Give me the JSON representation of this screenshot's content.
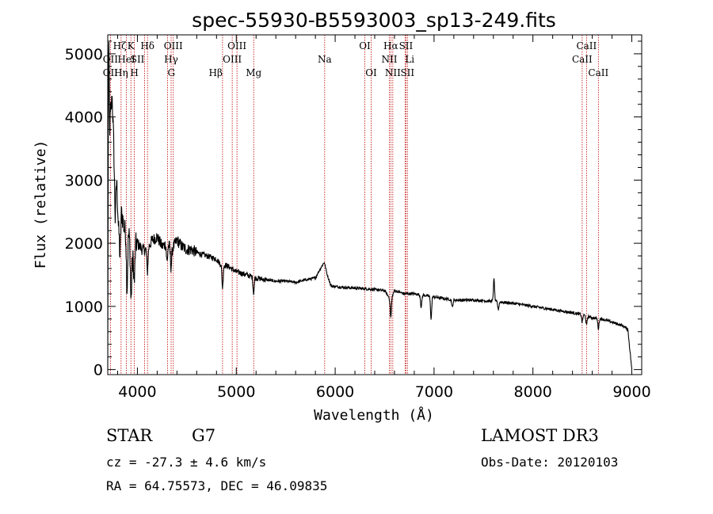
{
  "chart_data": {
    "type": "line",
    "title": "spec-55930-B5593003_sp13-249.fits",
    "xlabel": "Wavelength (Å)",
    "ylabel": "Flux (relative)",
    "xlim": [
      3700,
      9100
    ],
    "ylim": [
      -80,
      5300
    ],
    "xticks": [
      4000,
      5000,
      6000,
      7000,
      8000,
      9000
    ],
    "yticks": [
      0,
      1000,
      2000,
      3000,
      4000,
      5000
    ],
    "series": [
      {
        "name": "flux",
        "anchors": [
          [
            3700,
            0
          ],
          [
            3705,
            3400
          ],
          [
            3710,
            5300
          ],
          [
            3720,
            3800
          ],
          [
            3730,
            4100
          ],
          [
            3745,
            4300
          ],
          [
            3760,
            3600
          ],
          [
            3775,
            2400
          ],
          [
            3790,
            3000
          ],
          [
            3810,
            2200
          ],
          [
            3830,
            2600
          ],
          [
            3850,
            2400
          ],
          [
            3870,
            2200
          ],
          [
            3890,
            2200
          ],
          [
            3920,
            2100
          ],
          [
            3950,
            1700
          ],
          [
            3970,
            2000
          ],
          [
            4000,
            2000
          ],
          [
            4050,
            1900
          ],
          [
            4100,
            1900
          ],
          [
            4150,
            2050
          ],
          [
            4200,
            2100
          ],
          [
            4250,
            1950
          ],
          [
            4300,
            2000
          ],
          [
            4350,
            1900
          ],
          [
            4400,
            2050
          ],
          [
            4450,
            1950
          ],
          [
            4500,
            1900
          ],
          [
            4550,
            1900
          ],
          [
            4600,
            1850
          ],
          [
            4700,
            1800
          ],
          [
            4800,
            1750
          ],
          [
            4850,
            1650
          ],
          [
            4900,
            1650
          ],
          [
            5000,
            1550
          ],
          [
            5100,
            1500
          ],
          [
            5200,
            1450
          ],
          [
            5300,
            1420
          ],
          [
            5400,
            1400
          ],
          [
            5500,
            1400
          ],
          [
            5600,
            1380
          ],
          [
            5700,
            1420
          ],
          [
            5800,
            1450
          ],
          [
            5850,
            1600
          ],
          [
            5890,
            1700
          ],
          [
            5920,
            1500
          ],
          [
            5960,
            1320
          ],
          [
            6100,
            1300
          ],
          [
            6300,
            1280
          ],
          [
            6500,
            1250
          ],
          [
            6562,
            1100
          ],
          [
            6600,
            1250
          ],
          [
            6700,
            1200
          ],
          [
            6800,
            1200
          ],
          [
            7000,
            1150
          ],
          [
            7200,
            1100
          ],
          [
            7400,
            1100
          ],
          [
            7600,
            1080
          ],
          [
            7800,
            1050
          ],
          [
            8000,
            1000
          ],
          [
            8200,
            950
          ],
          [
            8400,
            900
          ],
          [
            8500,
            870
          ],
          [
            8600,
            820
          ],
          [
            8700,
            800
          ],
          [
            8800,
            750
          ],
          [
            8900,
            700
          ],
          [
            8960,
            640
          ],
          [
            9000,
            0
          ]
        ],
        "features": [
          [
            3825,
            -700
          ],
          [
            3895,
            -900
          ],
          [
            3935,
            -800
          ],
          [
            3969,
            -600
          ],
          [
            4101,
            -350
          ],
          [
            4300,
            -300
          ],
          [
            4340,
            -300
          ],
          [
            4861,
            -350
          ],
          [
            5175,
            -250
          ],
          [
            5890,
            0
          ],
          [
            6563,
            -280
          ],
          [
            6870,
            -200
          ],
          [
            6970,
            -350
          ],
          [
            7185,
            -120
          ],
          [
            7606,
            350
          ],
          [
            7650,
            -120
          ],
          [
            8498,
            -120
          ],
          [
            8542,
            -150
          ],
          [
            8662,
            -160
          ]
        ]
      }
    ],
    "lines": [
      {
        "wave": 3727,
        "label": "OII",
        "row": 1,
        "anchor": "middle"
      },
      {
        "wave": 3727,
        "label": "OII",
        "row": 2,
        "anchor": "middle"
      },
      {
        "wave": 3835,
        "label": "Hη",
        "row": 2,
        "anchor": "middle"
      },
      {
        "wave": 3889,
        "label": "Hζ",
        "row": 0,
        "anchor": "end"
      },
      {
        "wave": 3889,
        "label": "HeI",
        "row": 1,
        "anchor": "middle"
      },
      {
        "wave": 3934,
        "label": "K",
        "row": 0,
        "anchor": "middle"
      },
      {
        "wave": 3969,
        "label": "H",
        "row": 2,
        "anchor": "middle"
      },
      {
        "wave": 4072,
        "label": "SII",
        "row": 1,
        "anchor": "end"
      },
      {
        "wave": 4102,
        "label": "Hδ",
        "row": 0,
        "anchor": "middle"
      },
      {
        "wave": 4305,
        "label": "G",
        "row": 2,
        "anchor": "start"
      },
      {
        "wave": 4341,
        "label": "Hγ",
        "row": 1,
        "anchor": "middle"
      },
      {
        "wave": 4363,
        "label": "OIII",
        "row": 0,
        "anchor": "middle"
      },
      {
        "wave": 4861,
        "label": "Hβ",
        "row": 2,
        "anchor": "end"
      },
      {
        "wave": 4959,
        "label": "OIII",
        "row": 1,
        "anchor": "middle"
      },
      {
        "wave": 5007,
        "label": "OIII",
        "row": 0,
        "anchor": "middle"
      },
      {
        "wave": 5176,
        "label": "Mg",
        "row": 2,
        "anchor": "middle"
      },
      {
        "wave": 5894,
        "label": "Na",
        "row": 1,
        "anchor": "middle"
      },
      {
        "wave": 6300,
        "label": "OI",
        "row": 0,
        "anchor": "middle"
      },
      {
        "wave": 6364,
        "label": "OI",
        "row": 2,
        "anchor": "middle"
      },
      {
        "wave": 6548,
        "label": "NII",
        "row": 1,
        "anchor": "middle"
      },
      {
        "wave": 6563,
        "label": "Hα",
        "row": 0,
        "anchor": "middle"
      },
      {
        "wave": 6583,
        "label": "NII",
        "row": 2,
        "anchor": "middle"
      },
      {
        "wave": 6707,
        "label": "Li",
        "row": 1,
        "anchor": "start"
      },
      {
        "wave": 6716,
        "label": "SII",
        "row": 0,
        "anchor": "middle"
      },
      {
        "wave": 6731,
        "label": "SII",
        "row": 2,
        "anchor": "middle"
      },
      {
        "wave": 8498,
        "label": "CaII",
        "row": 1,
        "anchor": "middle"
      },
      {
        "wave": 8542,
        "label": "CaII",
        "row": 0,
        "anchor": "middle"
      },
      {
        "wave": 8662,
        "label": "CaII",
        "row": 2,
        "anchor": "middle"
      }
    ]
  },
  "info": {
    "class_label": "STAR",
    "subclass": "G7",
    "velocity": "cz = -27.3 ± 4.6 km/s",
    "coords": "RA =  64.75573, DEC =  46.09835",
    "survey": "LAMOST DR3",
    "obs_date": "Obs-Date: 20120103"
  },
  "colors": {
    "line_marker": "#c00000",
    "spectrum": "#000000"
  }
}
